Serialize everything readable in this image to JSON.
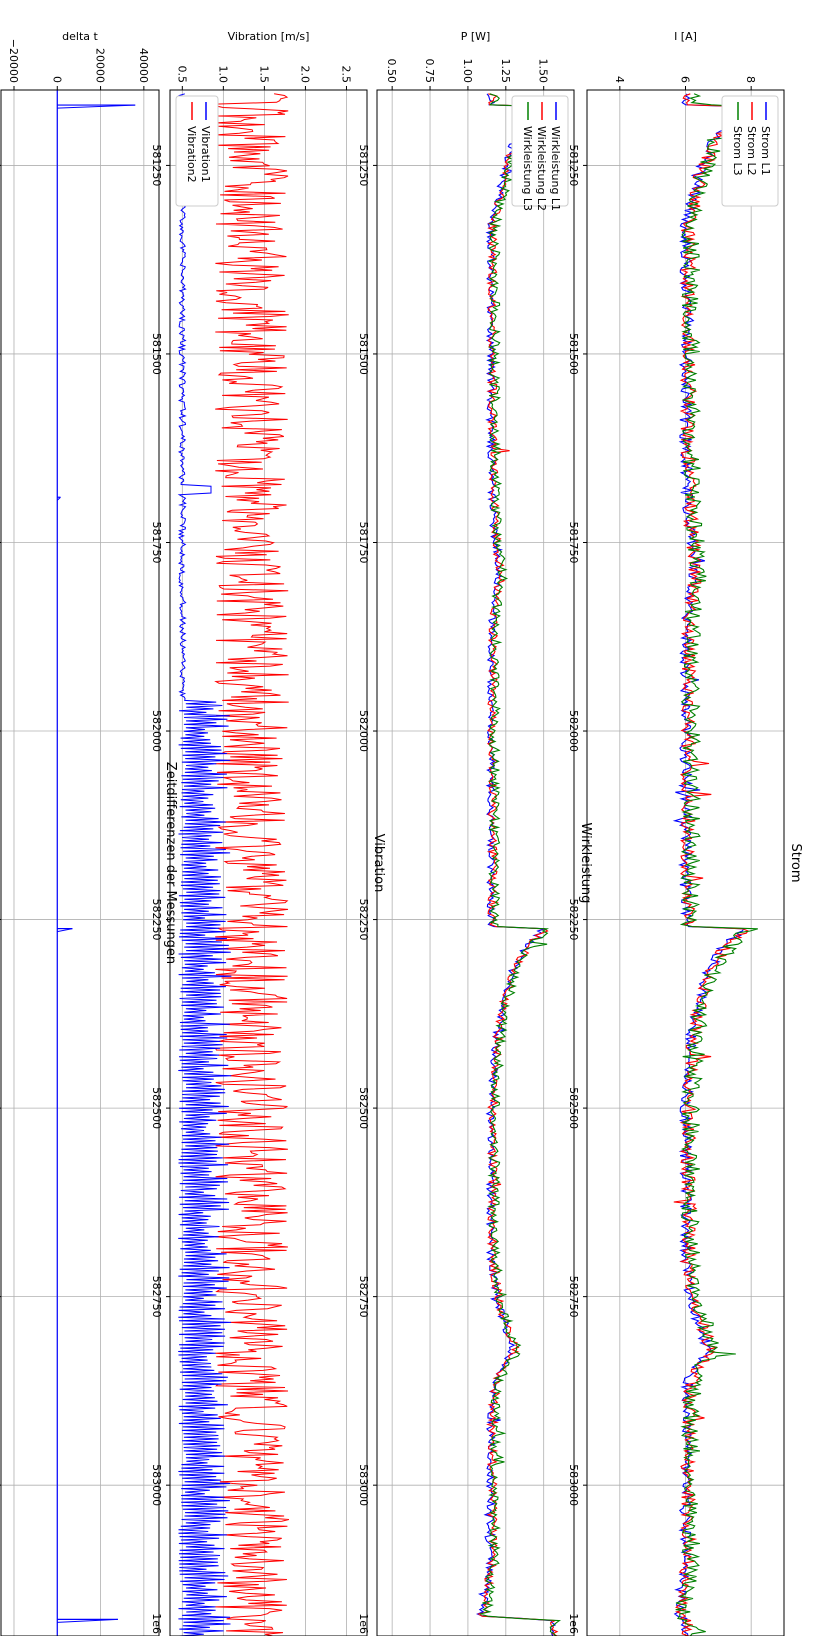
{
  "figure": {
    "orientation": "rotated 90 degrees clockwise",
    "shared_x_multiplier": "1e6"
  },
  "chart_data": [
    {
      "type": "line",
      "title": "Strom",
      "ylabel": "I [A]",
      "multiplier": "1e6",
      "xlim": [
        581150,
        583200
      ],
      "x_ticks": [
        "581250",
        "581500",
        "581750",
        "582000",
        "582250",
        "582500",
        "582750",
        "583000"
      ],
      "ylim": [
        3,
        9
      ],
      "y_ticks": [
        "4",
        "6",
        "8"
      ],
      "grid": true,
      "legend": "top-left",
      "series": [
        {
          "name": "Strom L1",
          "color": "#0000ff"
        },
        {
          "name": "Strom L2",
          "color": "#ff0000"
        },
        {
          "name": "Strom L3",
          "color": "#008000"
        }
      ],
      "shape": {
        "x": [
          581155,
          581170,
          581172,
          581178,
          581185,
          581195,
          581210,
          581230,
          581260,
          581300,
          581330,
          581400,
          581500,
          581600,
          581700,
          581800,
          581820,
          581900,
          582000,
          582100,
          582200,
          582240,
          582260,
          582262,
          582270,
          582290,
          582320,
          582360,
          582400,
          582500,
          582600,
          582700,
          582760,
          582820,
          582860,
          582900,
          583000,
          583100,
          583160,
          583175,
          583178,
          583200
        ],
        "y": [
          6.0,
          6.0,
          8.0,
          7.9,
          7.6,
          7.3,
          7.0,
          6.7,
          6.4,
          6.2,
          6.0,
          6.0,
          6.0,
          6.0,
          6.05,
          6.25,
          6.1,
          6.0,
          6.0,
          6.0,
          6.0,
          6.0,
          6.0,
          7.8,
          7.6,
          7.1,
          6.7,
          6.4,
          6.2,
          6.0,
          6.0,
          6.0,
          6.2,
          6.7,
          6.1,
          6.0,
          6.0,
          6.0,
          5.8,
          5.7,
          6.0,
          6.0
        ]
      }
    },
    {
      "type": "line",
      "title": "Wirkleistung",
      "ylabel": "P [W]",
      "multiplier": "1e6",
      "xlim": [
        581150,
        583200
      ],
      "x_ticks": [
        "581250",
        "581500",
        "581750",
        "582000",
        "582250",
        "582500",
        "582750",
        "583000"
      ],
      "ylim": [
        0.4,
        1.7
      ],
      "y_ticks": [
        "0.50",
        "0.75",
        "1.00",
        "1.25",
        "1.50"
      ],
      "grid": true,
      "legend": "top-left",
      "series": [
        {
          "name": "Wirkleistung L1",
          "color": "#0000ff"
        },
        {
          "name": "Wirkleistung L2",
          "color": "#ff0000"
        },
        {
          "name": "Wirkleistung L3",
          "color": "#008000"
        }
      ],
      "shape": {
        "x": [
          581155,
          581170,
          581172,
          581178,
          581185,
          581195,
          581210,
          581230,
          581260,
          581300,
          581330,
          581400,
          581500,
          581600,
          581700,
          581800,
          581820,
          581900,
          582000,
          582100,
          582200,
          582240,
          582260,
          582262,
          582270,
          582290,
          582320,
          582360,
          582400,
          582500,
          582600,
          582700,
          582760,
          582820,
          582860,
          582900,
          583000,
          583100,
          583160,
          583175,
          583178,
          583200
        ],
        "y": [
          1.15,
          1.15,
          1.55,
          1.5,
          1.43,
          1.37,
          1.32,
          1.28,
          1.24,
          1.19,
          1.15,
          1.15,
          1.15,
          1.15,
          1.16,
          1.2,
          1.17,
          1.15,
          1.15,
          1.15,
          1.15,
          1.15,
          1.15,
          1.5,
          1.46,
          1.37,
          1.29,
          1.23,
          1.19,
          1.15,
          1.15,
          1.15,
          1.2,
          1.3,
          1.18,
          1.15,
          1.15,
          1.15,
          1.1,
          1.08,
          1.55,
          1.55
        ]
      }
    },
    {
      "type": "line",
      "title": "Vibration",
      "ylabel": "Vibration [m/s]",
      "multiplier": "1e6",
      "xlim": [
        581150,
        583200
      ],
      "x_ticks": [
        "581250",
        "581500",
        "581750",
        "582000",
        "582250",
        "582500",
        "582750",
        "583000"
      ],
      "ylim": [
        0.35,
        2.75
      ],
      "y_ticks": [
        "0.5",
        "1.0",
        "1.5",
        "2.0",
        "2.5"
      ],
      "grid": true,
      "legend": "bottom-left",
      "series": [
        {
          "name": "Vibration1",
          "color": "#0000ff"
        },
        {
          "name": "Vibration2",
          "color": "#ff0000"
        }
      ],
      "shape": {
        "vibration1_baseline": 0.5,
        "vibration1_oscillation_from_x": 581960,
        "vibration1_oscillation_range": [
          0.45,
          1.1
        ],
        "vibration2_center": 1.35,
        "vibration2_range": [
          0.9,
          1.8
        ]
      }
    },
    {
      "type": "line",
      "title": "Zeitdifferenzen der Messungen",
      "ylabel": "delta t",
      "multiplier": "",
      "xlim": [
        581150,
        583200
      ],
      "x_ticks": [
        "581250",
        "581500",
        "581750",
        "582000",
        "582250",
        "582500",
        "582750",
        "583000"
      ],
      "ylim": [
        -26000,
        47000
      ],
      "y_ticks": [
        "−20000",
        "0",
        "20000",
        "40000"
      ],
      "grid": true,
      "legend": "none",
      "series": [
        {
          "name": "",
          "color": "#0000ff"
        }
      ],
      "shape": {
        "x": [
          581170,
          581690,
          582262,
          583178
        ],
        "y": [
          36000,
          1500,
          7000,
          28000
        ]
      }
    }
  ]
}
